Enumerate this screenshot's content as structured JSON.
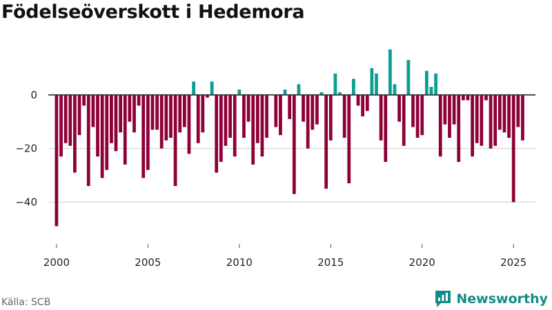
{
  "colors": {
    "positive": "#0a9e96",
    "negative": "#8e0038",
    "brand": "#138a87",
    "grid": "#dddddd",
    "baseline": "#333333"
  },
  "footer": {
    "source": "Källa: SCB",
    "brand": "Newsworthy"
  },
  "chart_data": {
    "type": "bar",
    "title": "Födelseöverskott i Hedemora",
    "xlabel": "",
    "ylabel": "",
    "ylim": [
      -52,
      20
    ],
    "yticks": [
      0,
      -20,
      -40
    ],
    "ytick_labels": [
      "0",
      "−20",
      "−40"
    ],
    "xlim": [
      1999.55,
      2026.2
    ],
    "xticks": [
      2000,
      2005,
      2010,
      2015,
      2020,
      2025
    ],
    "xtick_labels": [
      "2000",
      "2005",
      "2010",
      "2015",
      "2020",
      "2025"
    ],
    "start": 2000,
    "period": "quarter",
    "values": [
      -49,
      -23,
      -18,
      -19,
      -29,
      -15,
      -4,
      -34,
      -12,
      -23,
      -31,
      -28,
      -18,
      -21,
      -14,
      -26,
      -10,
      -14,
      -4,
      -31,
      -28,
      -13,
      -13,
      -20,
      -17,
      -16,
      -34,
      -14,
      -12,
      -22,
      5,
      -18,
      -14,
      -1,
      5,
      -29,
      -25,
      -19,
      -16,
      -23,
      2,
      -16,
      -10,
      -26,
      -18,
      -23,
      -16,
      0,
      -12,
      -15,
      2,
      -9,
      -37,
      4,
      -10,
      -20,
      -13,
      -11,
      1,
      -35,
      -17,
      8,
      1,
      -16,
      -33,
      6,
      -4,
      -8,
      -6,
      10,
      8,
      -17,
      -25,
      17,
      4,
      -10,
      -19,
      13,
      -12,
      -16,
      -15,
      9,
      3,
      8,
      -23,
      -11,
      -16,
      -11,
      -25,
      -2,
      -2,
      -23,
      -18,
      -19,
      -2,
      -20,
      -19,
      -13,
      -14,
      -16,
      -40,
      -12,
      -17
    ]
  }
}
